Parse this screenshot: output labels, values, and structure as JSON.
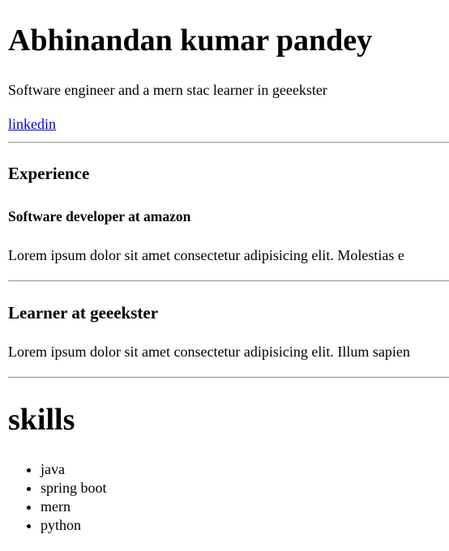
{
  "profile": {
    "name": "Abhinandan kumar pandey",
    "tagline": "Software engineer and a mern stac learner in geeekster",
    "link_label": "linkedin"
  },
  "experience": {
    "heading": "Experience",
    "role": "Software developer at amazon",
    "description": "Lorem ipsum dolor sit amet consectetur adipisicing elit. Molestias e"
  },
  "learner": {
    "heading": "Learner at geeekster",
    "description": "Lorem ipsum dolor sit amet consectetur adipisicing elit. Illum sapien"
  },
  "skills": {
    "title": "skills",
    "items": [
      "java",
      "spring boot",
      "mern",
      "python"
    ]
  }
}
